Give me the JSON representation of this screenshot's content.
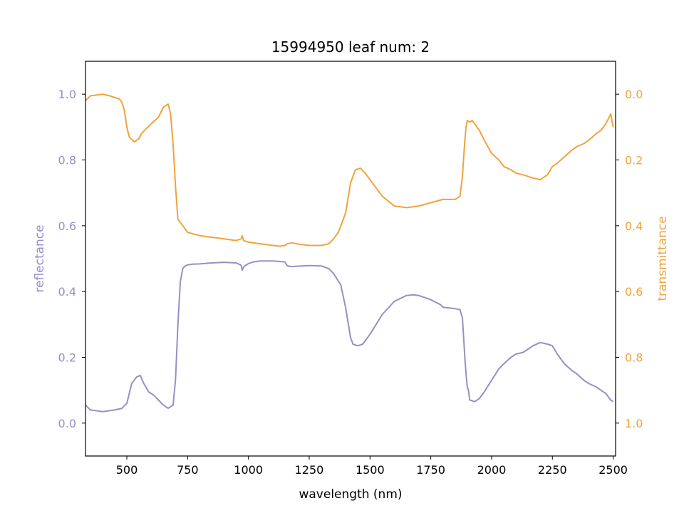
{
  "chart_data": {
    "type": "line",
    "title": "15994950 leaf num: 2",
    "xlabel": "wavelength (nm)",
    "ylabel_left": "reflectance",
    "ylabel_right": "transmittance",
    "xlim": [
      330,
      2510
    ],
    "ylim_left": [
      -0.1,
      1.1
    ],
    "ylim_right": [
      1.1,
      -0.1
    ],
    "right_axis_inverted": true,
    "xticks": [
      500,
      750,
      1000,
      1250,
      1500,
      1750,
      2000,
      2250,
      2500
    ],
    "xtick_labels": [
      "500",
      "750",
      "1000",
      "1250",
      "1500",
      "1750",
      "2000",
      "2250",
      "2500"
    ],
    "yticks_left": [
      0.0,
      0.2,
      0.4,
      0.6,
      0.8,
      1.0
    ],
    "ytick_labels_left": [
      "0.0",
      "0.2",
      "0.4",
      "0.6",
      "0.8",
      "1.0"
    ],
    "yticks_right": [
      0.0,
      0.2,
      0.4,
      0.6,
      0.8,
      1.0
    ],
    "ytick_labels_right": [
      "0.0",
      "0.2",
      "0.4",
      "0.6",
      "0.8",
      "1.0"
    ],
    "grid": false,
    "legend": "none",
    "colors": {
      "reflectance": "#9590c5",
      "transmittance": "#f0a33c",
      "axis": "#000000"
    },
    "series": [
      {
        "axis": "left",
        "x": [
          330,
          350,
          400,
          450,
          480,
          500,
          520,
          540,
          555,
          570,
          590,
          610,
          630,
          650,
          670,
          690,
          700,
          710,
          720,
          730,
          740,
          750,
          770,
          800,
          850,
          900,
          950,
          970,
          975,
          980,
          990,
          1000,
          1020,
          1050,
          1100,
          1150,
          1160,
          1180,
          1200,
          1250,
          1300,
          1330,
          1350,
          1380,
          1400,
          1420,
          1430,
          1450,
          1470,
          1500,
          1550,
          1600,
          1650,
          1680,
          1700,
          1750,
          1790,
          1800,
          1850,
          1870,
          1880,
          1890,
          1895,
          1900,
          1905,
          1910,
          1920,
          1930,
          1950,
          1970,
          2000,
          2030,
          2050,
          2080,
          2100,
          2130,
          2150,
          2170,
          2200,
          2230,
          2250,
          2270,
          2300,
          2330,
          2350,
          2380,
          2400,
          2430,
          2450,
          2470,
          2490,
          2500
        ],
        "y": [
          0.055,
          0.04,
          0.035,
          0.04,
          0.045,
          0.06,
          0.12,
          0.14,
          0.145,
          0.12,
          0.095,
          0.085,
          0.07,
          0.055,
          0.045,
          0.055,
          0.13,
          0.3,
          0.43,
          0.47,
          0.478,
          0.481,
          0.483,
          0.484,
          0.487,
          0.489,
          0.487,
          0.48,
          0.465,
          0.475,
          0.48,
          0.485,
          0.49,
          0.493,
          0.493,
          0.49,
          0.478,
          0.476,
          0.477,
          0.479,
          0.478,
          0.47,
          0.455,
          0.42,
          0.35,
          0.26,
          0.24,
          0.235,
          0.24,
          0.27,
          0.33,
          0.37,
          0.388,
          0.39,
          0.388,
          0.375,
          0.36,
          0.352,
          0.348,
          0.345,
          0.32,
          0.2,
          0.15,
          0.11,
          0.1,
          0.07,
          0.068,
          0.065,
          0.075,
          0.095,
          0.13,
          0.165,
          0.18,
          0.2,
          0.21,
          0.215,
          0.225,
          0.235,
          0.245,
          0.24,
          0.235,
          0.21,
          0.18,
          0.16,
          0.15,
          0.13,
          0.12,
          0.11,
          0.1,
          0.09,
          0.07,
          0.065
        ]
      },
      {
        "axis": "right",
        "x": [
          330,
          350,
          400,
          430,
          450,
          470,
          480,
          490,
          500,
          510,
          530,
          550,
          560,
          580,
          600,
          630,
          650,
          670,
          680,
          690,
          700,
          710,
          720,
          730,
          750,
          800,
          850,
          900,
          950,
          970,
          975,
          980,
          1000,
          1050,
          1100,
          1130,
          1150,
          1160,
          1180,
          1200,
          1250,
          1300,
          1330,
          1350,
          1370,
          1400,
          1420,
          1440,
          1460,
          1480,
          1500,
          1550,
          1600,
          1650,
          1700,
          1750,
          1800,
          1850,
          1870,
          1880,
          1890,
          1895,
          1900,
          1910,
          1920,
          1930,
          1950,
          1970,
          2000,
          2030,
          2050,
          2080,
          2100,
          2130,
          2150,
          2170,
          2200,
          2230,
          2250,
          2270,
          2300,
          2330,
          2350,
          2380,
          2400,
          2430,
          2450,
          2470,
          2490,
          2500
        ],
        "y": [
          0.02,
          0.005,
          0.0,
          0.005,
          0.01,
          0.015,
          0.025,
          0.05,
          0.1,
          0.13,
          0.145,
          0.135,
          0.12,
          0.105,
          0.09,
          0.07,
          0.04,
          0.03,
          0.06,
          0.15,
          0.28,
          0.38,
          0.39,
          0.4,
          0.42,
          0.43,
          0.435,
          0.44,
          0.445,
          0.44,
          0.43,
          0.445,
          0.45,
          0.455,
          0.46,
          0.462,
          0.46,
          0.455,
          0.452,
          0.455,
          0.46,
          0.46,
          0.455,
          0.44,
          0.42,
          0.36,
          0.27,
          0.23,
          0.225,
          0.24,
          0.26,
          0.31,
          0.34,
          0.345,
          0.34,
          0.33,
          0.32,
          0.32,
          0.31,
          0.25,
          0.14,
          0.1,
          0.08,
          0.085,
          0.08,
          0.09,
          0.11,
          0.14,
          0.18,
          0.2,
          0.22,
          0.23,
          0.24,
          0.245,
          0.25,
          0.255,
          0.26,
          0.245,
          0.22,
          0.21,
          0.19,
          0.17,
          0.16,
          0.15,
          0.14,
          0.12,
          0.11,
          0.09,
          0.06,
          0.1
        ]
      }
    ]
  }
}
